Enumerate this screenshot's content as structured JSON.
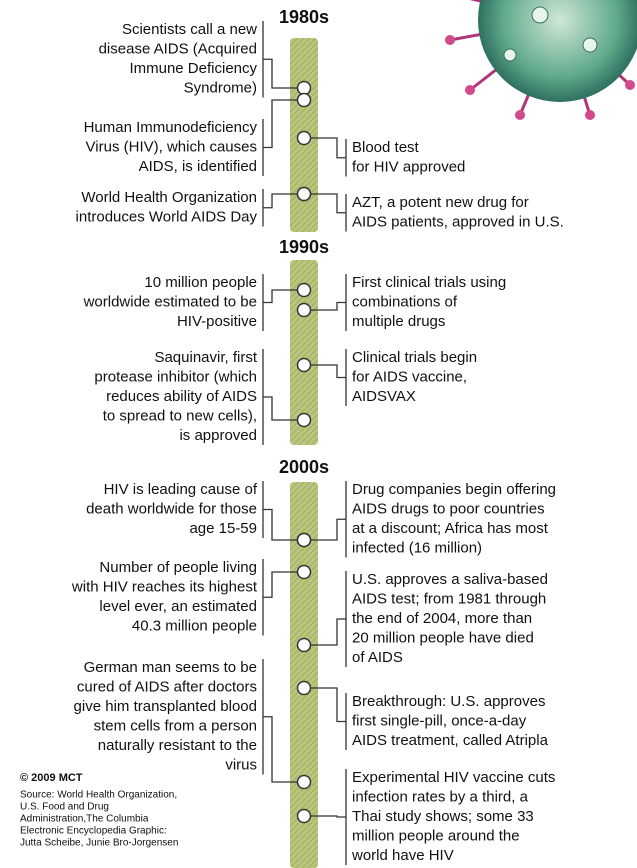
{
  "decades": [
    {
      "label": "1980s",
      "left": [
        {
          "lines": [
            "Scientists call a new",
            "disease AIDS (Acquired",
            "Immune Deficiency",
            "Syndrome)"
          ]
        },
        {
          "lines": [
            "Human Immunodeficiency",
            "Virus (HIV), which causes",
            "AIDS, is identified"
          ]
        },
        {
          "lines": [
            "World Health Organization",
            "introduces World AIDS Day"
          ]
        }
      ],
      "right": [
        {
          "lines": [
            "Blood test",
            "for HIV approved"
          ]
        },
        {
          "lines": [
            "AZT, a potent new drug for",
            "AIDS patients, approved in U.S."
          ]
        }
      ]
    },
    {
      "label": "1990s",
      "left": [
        {
          "lines": [
            "10 million people",
            "worldwide estimated to be",
            "HIV-positive"
          ]
        },
        {
          "lines": [
            "Saquinavir, first",
            "protease inhibitor (which",
            "reduces ability of AIDS",
            "to spread to new cells),",
            "is approved"
          ]
        }
      ],
      "right": [
        {
          "lines": [
            "First clinical trials using",
            "combinations of",
            "multiple drugs"
          ]
        },
        {
          "lines": [
            "Clinical trials begin",
            "for AIDS vaccine,",
            "AIDSVAX"
          ]
        }
      ]
    },
    {
      "label": "2000s",
      "left": [
        {
          "lines": [
            "HIV is leading cause of",
            "death worldwide for those",
            "age 15-59"
          ]
        },
        {
          "lines": [
            "Number of people living",
            "with HIV reaches its highest",
            "level ever, an estimated",
            "40.3 million people"
          ]
        },
        {
          "lines": [
            "German man seems to be",
            "cured of AIDS after doctors",
            "give him transplanted blood",
            "stem cells from a person",
            "naturally resistant to the",
            "virus"
          ]
        }
      ],
      "right": [
        {
          "lines": [
            "Drug companies begin offering",
            "AIDS drugs to poor countries",
            "at a discount; Africa has most",
            "infected (16 million)"
          ]
        },
        {
          "lines": [
            "U.S. approves a saliva-based",
            "AIDS test; from 1981 through",
            "the end of 2004, more than",
            "20 million people have died",
            "of AIDS"
          ]
        },
        {
          "lines": [
            "Breakthrough: U.S. approves",
            "first single-pill, once-a-day",
            "AIDS treatment, called Atripla"
          ]
        },
        {
          "lines": [
            "Experimental HIV vaccine cuts",
            "infection rates by a third, a",
            "Thai study shows; some 33",
            "million people around the",
            "world have HIV"
          ]
        }
      ]
    }
  ],
  "credit": {
    "copyright": "© 2009 MCT",
    "source_lines": [
      "Source: World Health Organization,",
      "U.S. Food and Drug",
      "Administration,The Columbia",
      "Electronic Encyclopedia  Graphic:",
      "Jutta Scheibe, Junie Bro-Jorgensen"
    ]
  }
}
